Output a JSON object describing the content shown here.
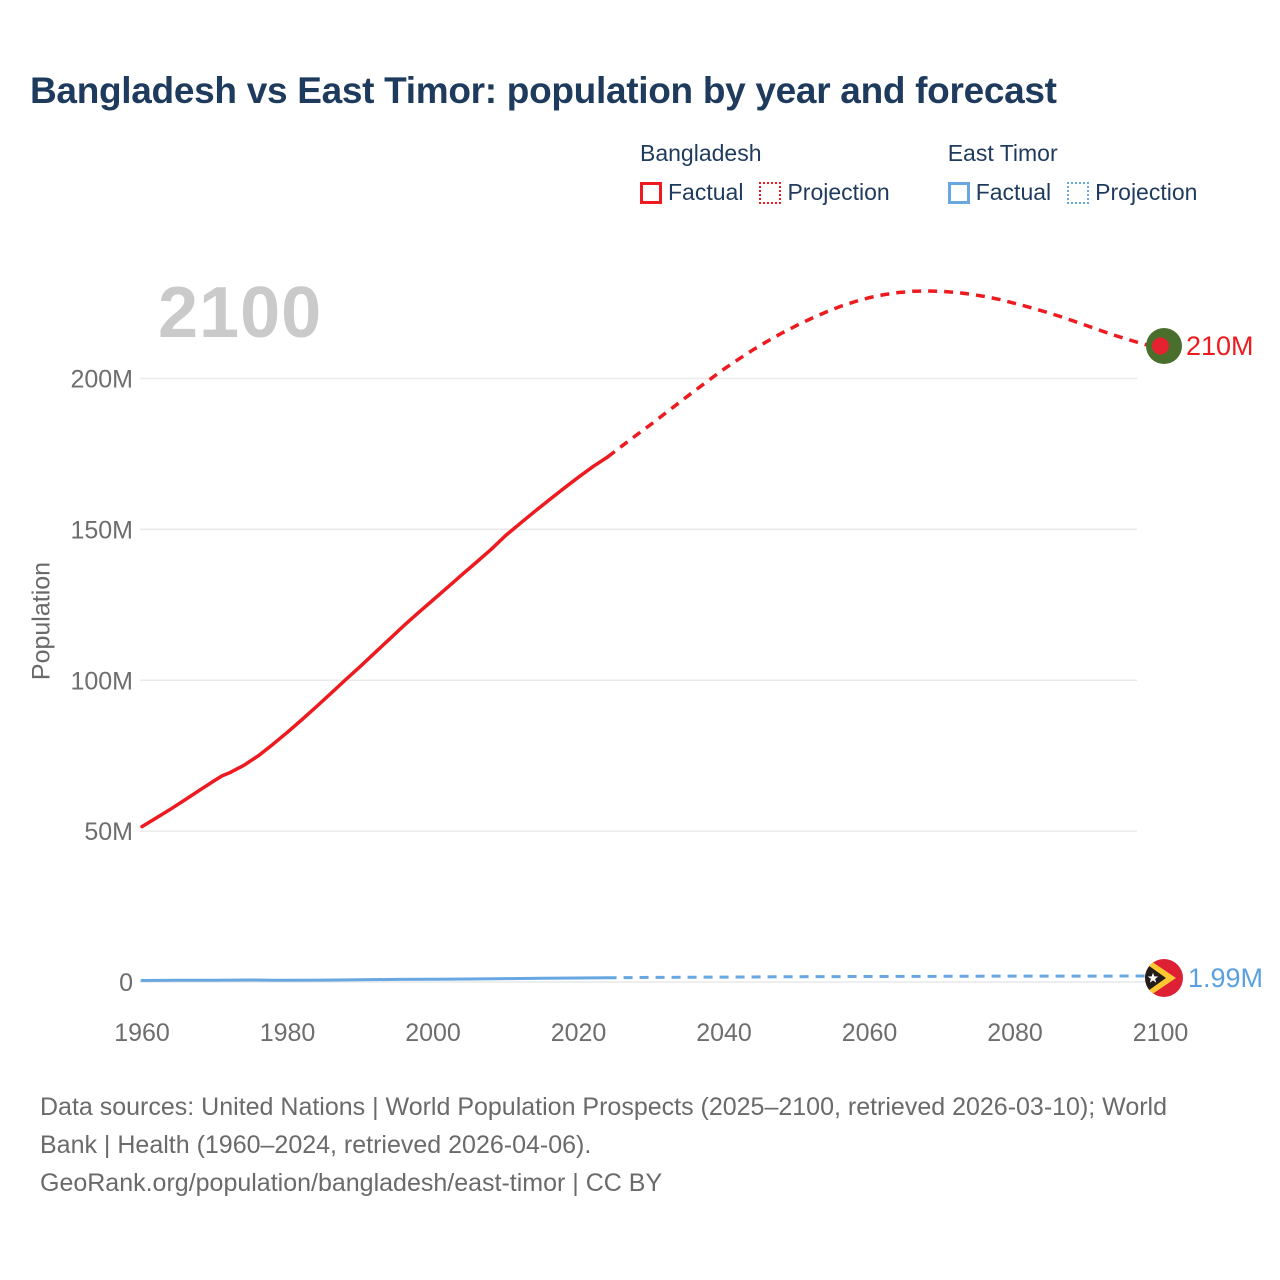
{
  "title": "Bangladesh vs East Timor: population by year and forecast",
  "watermark_year": "2100",
  "legend": {
    "groups": [
      {
        "label": "Bangladesh",
        "color": "#ed1b1f",
        "items": [
          {
            "label": "Factual",
            "style": "solid"
          },
          {
            "label": "Projection",
            "style": "dotted"
          }
        ]
      },
      {
        "label": "East Timor",
        "color": "#68a7e2",
        "items": [
          {
            "label": "Factual",
            "style": "solid"
          },
          {
            "label": "Projection",
            "style": "dotted"
          }
        ]
      }
    ]
  },
  "chart_data": {
    "type": "line",
    "title": "Bangladesh vs East Timor: population by year and forecast",
    "xlabel": "",
    "ylabel": "Population",
    "unit": "millions of people",
    "xlim": [
      1960,
      2100
    ],
    "ylim": [
      0,
      240
    ],
    "grid": "horizontal",
    "x_ticks": [
      {
        "value": 1960,
        "label": "1960"
      },
      {
        "value": 1980,
        "label": "1980"
      },
      {
        "value": 2000,
        "label": "2000"
      },
      {
        "value": 2020,
        "label": "2020"
      },
      {
        "value": 2040,
        "label": "2040"
      },
      {
        "value": 2060,
        "label": "2060"
      },
      {
        "value": 2080,
        "label": "2080"
      },
      {
        "value": 2100,
        "label": "2100"
      }
    ],
    "y_ticks": [
      {
        "value": 0,
        "label": "0"
      },
      {
        "value": 50,
        "label": "50M"
      },
      {
        "value": 100,
        "label": "100M"
      },
      {
        "value": 150,
        "label": "150M"
      },
      {
        "value": 200,
        "label": "200M"
      }
    ],
    "series": [
      {
        "name": "Bangladesh Factual",
        "color": "#ed1b1f",
        "style": "solid",
        "points": [
          [
            1960,
            51.5
          ],
          [
            1962,
            54.4
          ],
          [
            1964,
            57.4
          ],
          [
            1966,
            60.5
          ],
          [
            1968,
            63.7
          ],
          [
            1970,
            66.8
          ],
          [
            1971,
            68.3
          ],
          [
            1972,
            69.3
          ],
          [
            1974,
            71.8
          ],
          [
            1976,
            75.0
          ],
          [
            1978,
            78.8
          ],
          [
            1980,
            82.8
          ],
          [
            1982,
            87.0
          ],
          [
            1984,
            91.3
          ],
          [
            1986,
            95.7
          ],
          [
            1988,
            100.2
          ],
          [
            1990,
            104.6
          ],
          [
            1992,
            109.1
          ],
          [
            1994,
            113.6
          ],
          [
            1996,
            118.1
          ],
          [
            1998,
            122.4
          ],
          [
            2000,
            126.6
          ],
          [
            2002,
            130.8
          ],
          [
            2004,
            135.0
          ],
          [
            2006,
            139.2
          ],
          [
            2008,
            143.4
          ],
          [
            2010,
            148.0
          ],
          [
            2012,
            152.0
          ],
          [
            2014,
            156.0
          ],
          [
            2016,
            159.8
          ],
          [
            2018,
            163.6
          ],
          [
            2020,
            167.3
          ],
          [
            2022,
            170.8
          ],
          [
            2024,
            174.0
          ]
        ]
      },
      {
        "name": "Bangladesh Projection",
        "color": "#ed1b1f",
        "style": "dashed",
        "points": [
          [
            2024,
            174.0
          ],
          [
            2026,
            177.7
          ],
          [
            2028,
            181.3
          ],
          [
            2030,
            184.9
          ],
          [
            2032,
            188.6
          ],
          [
            2034,
            192.3
          ],
          [
            2036,
            196.0
          ],
          [
            2038,
            199.6
          ],
          [
            2040,
            203.1
          ],
          [
            2042,
            206.4
          ],
          [
            2044,
            209.5
          ],
          [
            2046,
            212.4
          ],
          [
            2048,
            215.1
          ],
          [
            2050,
            217.6
          ],
          [
            2052,
            219.9
          ],
          [
            2054,
            222.0
          ],
          [
            2056,
            223.9
          ],
          [
            2058,
            225.5
          ],
          [
            2060,
            226.8
          ],
          [
            2062,
            227.8
          ],
          [
            2064,
            228.5
          ],
          [
            2066,
            228.9
          ],
          [
            2068,
            229.0
          ],
          [
            2070,
            228.9
          ],
          [
            2072,
            228.5
          ],
          [
            2074,
            227.9
          ],
          [
            2076,
            227.1
          ],
          [
            2078,
            226.1
          ],
          [
            2080,
            224.9
          ],
          [
            2082,
            223.6
          ],
          [
            2084,
            222.2
          ],
          [
            2086,
            220.7
          ],
          [
            2088,
            219.1
          ],
          [
            2090,
            217.4
          ],
          [
            2092,
            215.7
          ],
          [
            2094,
            214.1
          ],
          [
            2096,
            212.6
          ],
          [
            2098,
            211.2
          ],
          [
            2100,
            210.0
          ]
        ]
      },
      {
        "name": "East Timor Factual",
        "color": "#68a7e2",
        "style": "solid",
        "points": [
          [
            1960,
            0.5
          ],
          [
            1965,
            0.55
          ],
          [
            1970,
            0.6
          ],
          [
            1975,
            0.67
          ],
          [
            1978,
            0.6
          ],
          [
            1980,
            0.58
          ],
          [
            1985,
            0.64
          ],
          [
            1990,
            0.74
          ],
          [
            1995,
            0.85
          ],
          [
            2000,
            0.88
          ],
          [
            2005,
            1.0
          ],
          [
            2010,
            1.12
          ],
          [
            2015,
            1.22
          ],
          [
            2020,
            1.31
          ],
          [
            2024,
            1.4
          ]
        ]
      },
      {
        "name": "East Timor Projection",
        "color": "#68a7e2",
        "style": "dashed",
        "points": [
          [
            2024,
            1.4
          ],
          [
            2030,
            1.51
          ],
          [
            2040,
            1.64
          ],
          [
            2050,
            1.75
          ],
          [
            2060,
            1.83
          ],
          [
            2070,
            1.9
          ],
          [
            2080,
            1.94
          ],
          [
            2090,
            1.97
          ],
          [
            2100,
            1.99
          ]
        ]
      }
    ],
    "end_labels": [
      {
        "series": "Bangladesh",
        "year": 2100,
        "text": "210M",
        "icon": "bangladesh-flag"
      },
      {
        "series": "East Timor",
        "year": 2100,
        "text": "1.99M",
        "icon": "east-timor-flag"
      }
    ],
    "legend_position": "top-right"
  },
  "footer": {
    "sources_line": "Data sources: United Nations | World Population Prospects (2025–2100, retrieved 2026-03-10); World Bank | Health (1960–2024, retrieved 2026-04-06).",
    "attribution_line": "GeoRank.org/population/bangladesh/east-timor | CC BY"
  }
}
